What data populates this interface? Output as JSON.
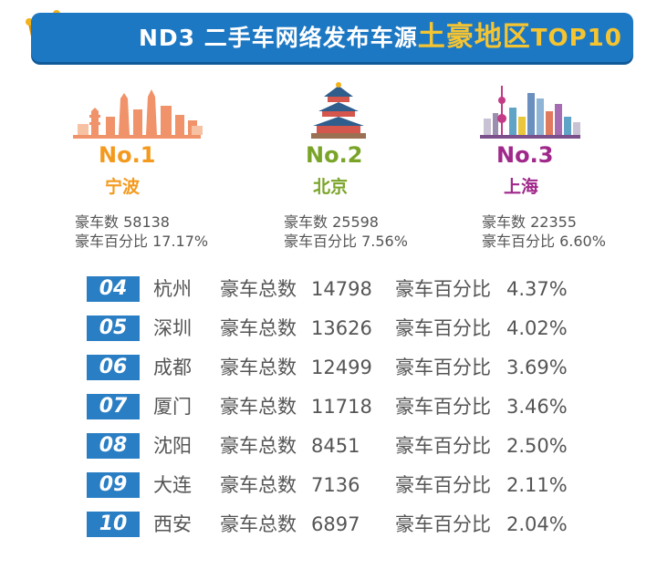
{
  "banner": {
    "title_a": "ND3 二手车网络发布车源",
    "title_b": "土豪地区",
    "title_c": "TOP10"
  },
  "colors": {
    "banner": "#1d78c4",
    "highlight": "#f5c431",
    "rank1": "#f39a1e",
    "rank2": "#7aa428",
    "rank3": "#a0288a",
    "row_badge": "#2a7ec4"
  },
  "top3": [
    {
      "rank": "No.1",
      "city": "宁波",
      "count_label": "豪车数 58138",
      "pct_label": "豪车百分比 17.17%"
    },
    {
      "rank": "No.2",
      "city": "北京",
      "count_label": "豪车数 25598",
      "pct_label": "豪车百分比 7.56%"
    },
    {
      "rank": "No.3",
      "city": "上海",
      "count_label": "豪车数 22355",
      "pct_label": "豪车百分比 6.60%"
    }
  ],
  "table": {
    "count_label": "豪车总数",
    "pct_label": "豪车百分比",
    "rows": [
      {
        "num": "04",
        "city": "杭州",
        "count": "14798",
        "pct": "4.37%"
      },
      {
        "num": "05",
        "city": "深圳",
        "count": "13626",
        "pct": "4.02%"
      },
      {
        "num": "06",
        "city": "成都",
        "count": "12499",
        "pct": "3.69%"
      },
      {
        "num": "07",
        "city": "厦门",
        "count": "11718",
        "pct": "3.46%"
      },
      {
        "num": "08",
        "city": "沈阳",
        "count": "8451",
        "pct": "2.50%"
      },
      {
        "num": "09",
        "city": "大连",
        "count": "7136",
        "pct": "2.11%"
      },
      {
        "num": "10",
        "city": "西安",
        "count": "6897",
        "pct": "2.04%"
      }
    ]
  }
}
